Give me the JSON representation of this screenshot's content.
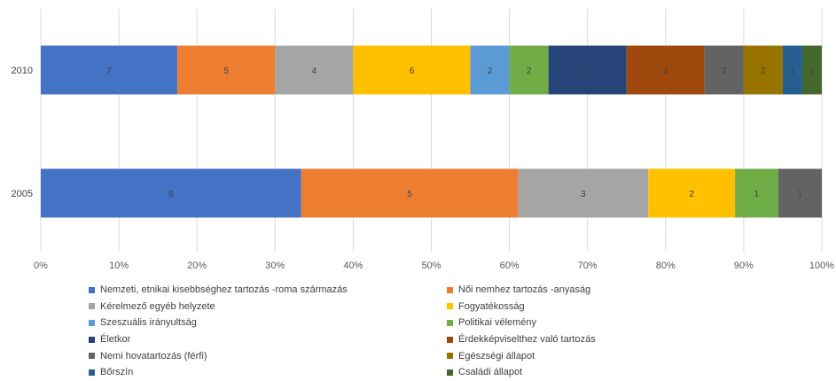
{
  "chart_data": {
    "type": "bar",
    "orientation": "horizontal",
    "stacked": "percent",
    "grid": true,
    "legend_position": "bottom",
    "xlim": [
      0,
      100
    ],
    "x_ticks": [
      "0%",
      "10%",
      "20%",
      "30%",
      "40%",
      "50%",
      "60%",
      "70%",
      "80%",
      "90%",
      "100%"
    ],
    "categories": [
      "2010",
      "2005"
    ],
    "series": [
      {
        "name": "Nemzeti, etnikai kisebbséghez tartozás -roma származás",
        "color": "#4472C4",
        "values": [
          7,
          6
        ]
      },
      {
        "name": "Női nemhez tartozás -anyaság",
        "color": "#ED7D31",
        "values": [
          5,
          5
        ]
      },
      {
        "name": "Kérelmező egyéb helyzete",
        "color": "#A5A5A5",
        "values": [
          4,
          3
        ]
      },
      {
        "name": "Fogyatékosság",
        "color": "#FFC000",
        "values": [
          6,
          2
        ]
      },
      {
        "name": "Szeszuális irányultság",
        "color": "#5B9BD5",
        "values": [
          2,
          0
        ]
      },
      {
        "name": "Politikai vélemény",
        "color": "#70AD47",
        "values": [
          2,
          1
        ]
      },
      {
        "name": "Életkor",
        "color": "#264478",
        "values": [
          4,
          0
        ]
      },
      {
        "name": "Érdekképviselthez való tartozás",
        "color": "#9E480E",
        "values": [
          4,
          0
        ]
      },
      {
        "name": "Nemi hovatartozás (férfi)",
        "color": "#636363",
        "values": [
          2,
          1
        ]
      },
      {
        "name": "Egészségi állapot",
        "color": "#997300",
        "values": [
          2,
          0
        ]
      },
      {
        "name": "Bőrszín",
        "color": "#255E91",
        "values": [
          1,
          0
        ]
      },
      {
        "name": "Családi állapot",
        "color": "#43682B",
        "values": [
          1,
          0
        ]
      }
    ]
  }
}
